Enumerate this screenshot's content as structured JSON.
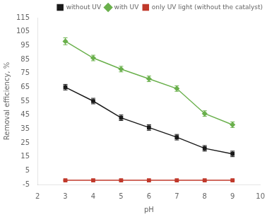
{
  "chart_data": {
    "type": "line",
    "xlabel": "pH",
    "ylabel": "Removal efficiency, %",
    "x": [
      3,
      4,
      5,
      6,
      7,
      8,
      9
    ],
    "series": [
      {
        "name": "without UV",
        "color": "#1a1a1a",
        "marker": "square",
        "values": [
          65,
          55,
          43,
          36,
          29,
          21,
          17
        ],
        "errors": [
          2.0,
          2.0,
          2.0,
          2.0,
          2.0,
          2.0,
          2.0
        ]
      },
      {
        "name": "with UV",
        "color": "#6ab04c",
        "marker": "diamond",
        "values": [
          98,
          86,
          78,
          71,
          64,
          46,
          38
        ],
        "errors": [
          2.5,
          2.0,
          2.0,
          2.0,
          2.0,
          2.0,
          2.0
        ]
      },
      {
        "name": "only UV light (without the catalyst)",
        "color": "#c0392b",
        "marker": "square",
        "values": [
          -2,
          -2,
          -2,
          -2,
          -2,
          -2,
          -2
        ],
        "errors": [
          0.3,
          0.3,
          0.3,
          0.3,
          0.3,
          0.3,
          0.3
        ]
      }
    ],
    "xlim": [
      2,
      10
    ],
    "ylim": [
      -5,
      115
    ],
    "xticks": [
      2,
      3,
      4,
      5,
      6,
      7,
      8,
      9,
      10
    ],
    "yticks": [
      -5,
      5,
      15,
      25,
      35,
      45,
      55,
      65,
      75,
      85,
      95,
      105,
      115
    ],
    "grid": false,
    "legend": "upper right"
  }
}
